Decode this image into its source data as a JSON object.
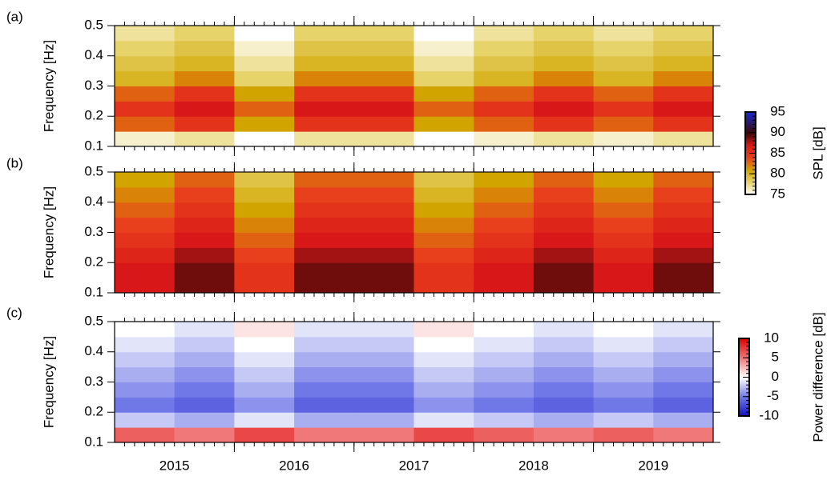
{
  "chart_data": [
    {
      "type": "heatmap",
      "panel_label": "(a)",
      "ylabel": "Frequency [Hz]",
      "x": [
        2015.25,
        2015.75,
        2016.25,
        2016.75,
        2017.25,
        2017.75,
        2018.25,
        2018.75,
        2019.25,
        2019.75
      ],
      "y": [
        0.125,
        0.175,
        0.225,
        0.275,
        0.325,
        0.375,
        0.425,
        0.475
      ],
      "z": [
        [
          76,
          77,
          75,
          77,
          77,
          75,
          76,
          77,
          76,
          77
        ],
        [
          83,
          85,
          81,
          85,
          85,
          81,
          83,
          85,
          83,
          85
        ],
        [
          85,
          87,
          83,
          87,
          87,
          83,
          85,
          87,
          85,
          87
        ],
        [
          83,
          85,
          81,
          85,
          85,
          81,
          83,
          85,
          83,
          85
        ],
        [
          80,
          82,
          78,
          82,
          82,
          78,
          80,
          82,
          80,
          82
        ],
        [
          79,
          80,
          77,
          80,
          80,
          77,
          79,
          80,
          79,
          80
        ],
        [
          78,
          79,
          76,
          79,
          79,
          76,
          78,
          79,
          78,
          79
        ],
        [
          77,
          78,
          75,
          78,
          78,
          75,
          77,
          78,
          77,
          78
        ]
      ],
      "xlim": [
        2015,
        2020
      ],
      "xticks_major": [
        2016,
        2017,
        2018,
        2019
      ],
      "ylim": [
        0.1,
        0.5
      ],
      "yticks": [
        0.1,
        0.2,
        0.3,
        0.4,
        0.5
      ],
      "colorbar": {
        "label": "SPL [dB]",
        "lim": [
          75,
          95
        ],
        "ticks": [
          75,
          80,
          85,
          90,
          95
        ],
        "colorscale": [
          [
            75,
            "#ffffff"
          ],
          [
            78,
            "#e6d36a"
          ],
          [
            81,
            "#d2a400"
          ],
          [
            84,
            "#e8401c"
          ],
          [
            87,
            "#d81818"
          ],
          [
            90,
            "#3a0808"
          ],
          [
            95,
            "#1a2ad0"
          ]
        ]
      }
    },
    {
      "type": "heatmap",
      "panel_label": "(b)",
      "ylabel": "Frequency [Hz]",
      "x": [
        2015.25,
        2015.75,
        2016.25,
        2016.75,
        2017.25,
        2017.75,
        2018.25,
        2018.75,
        2019.25,
        2019.75
      ],
      "y": [
        0.125,
        0.175,
        0.225,
        0.275,
        0.325,
        0.375,
        0.425,
        0.475
      ],
      "z": [
        [
          87,
          89,
          85,
          89,
          89,
          85,
          87,
          89,
          87,
          89
        ],
        [
          87,
          89,
          85,
          89,
          89,
          85,
          87,
          89,
          87,
          89
        ],
        [
          86,
          88,
          84,
          88,
          88,
          84,
          86,
          88,
          86,
          88
        ],
        [
          85,
          87,
          83,
          87,
          87,
          83,
          85,
          87,
          85,
          87
        ],
        [
          84,
          86,
          82,
          86,
          86,
          82,
          84,
          86,
          84,
          86
        ],
        [
          83,
          85,
          81,
          85,
          85,
          81,
          83,
          85,
          83,
          85
        ],
        [
          82,
          84,
          80,
          84,
          84,
          80,
          82,
          84,
          82,
          84
        ],
        [
          81,
          83,
          79,
          83,
          83,
          79,
          81,
          83,
          81,
          83
        ]
      ],
      "xlim": [
        2015,
        2020
      ],
      "xticks_major": [
        2016,
        2017,
        2018,
        2019
      ],
      "ylim": [
        0.1,
        0.5
      ],
      "yticks": [
        0.1,
        0.2,
        0.3,
        0.4,
        0.5
      ]
    },
    {
      "type": "heatmap",
      "panel_label": "(c)",
      "ylabel": "Frequency [Hz]",
      "x": [
        2015.25,
        2015.75,
        2016.25,
        2016.75,
        2017.25,
        2017.75,
        2018.25,
        2018.75,
        2019.25,
        2019.75
      ],
      "y": [
        0.125,
        0.175,
        0.225,
        0.275,
        0.325,
        0.375,
        0.425,
        0.475
      ],
      "z": [
        [
          6,
          5,
          7,
          5,
          5,
          7,
          6,
          5,
          6,
          5
        ],
        [
          -2,
          -3,
          -1,
          -3,
          -3,
          -1,
          -2,
          -3,
          -2,
          -3
        ],
        [
          -5,
          -6,
          -4,
          -6,
          -6,
          -4,
          -5,
          -6,
          -5,
          -6
        ],
        [
          -4,
          -5,
          -3,
          -5,
          -5,
          -3,
          -4,
          -5,
          -4,
          -5
        ],
        [
          -3,
          -4,
          -2,
          -4,
          -4,
          -2,
          -3,
          -4,
          -3,
          -4
        ],
        [
          -2,
          -3,
          -1,
          -3,
          -3,
          -1,
          -2,
          -3,
          -2,
          -3
        ],
        [
          -1,
          -2,
          0,
          -2,
          -2,
          0,
          -1,
          -2,
          -1,
          -2
        ],
        [
          0,
          -1,
          1,
          -1,
          -1,
          1,
          0,
          -1,
          0,
          -1
        ]
      ],
      "xlim": [
        2015,
        2020
      ],
      "xticks_major": [
        2016,
        2017,
        2018,
        2019
      ],
      "xticks": [
        {
          "value": 2015.5,
          "label": "2015"
        },
        {
          "value": 2016.5,
          "label": "2016"
        },
        {
          "value": 2017.5,
          "label": "2017"
        },
        {
          "value": 2018.5,
          "label": "2018"
        },
        {
          "value": 2019.5,
          "label": "2019"
        }
      ],
      "ylim": [
        0.1,
        0.5
      ],
      "yticks": [
        0.1,
        0.2,
        0.3,
        0.4,
        0.5
      ],
      "colorbar": {
        "label": "Power difference [dB]",
        "lim": [
          -10,
          10
        ],
        "ticks": [
          10,
          5,
          0,
          -5,
          -10
        ],
        "colorscale": [
          [
            -10,
            "#1010c0"
          ],
          [
            -5,
            "#7078e8"
          ],
          [
            0,
            "#ffffff"
          ],
          [
            5,
            "#f07878"
          ],
          [
            10,
            "#e00000"
          ]
        ]
      }
    }
  ]
}
